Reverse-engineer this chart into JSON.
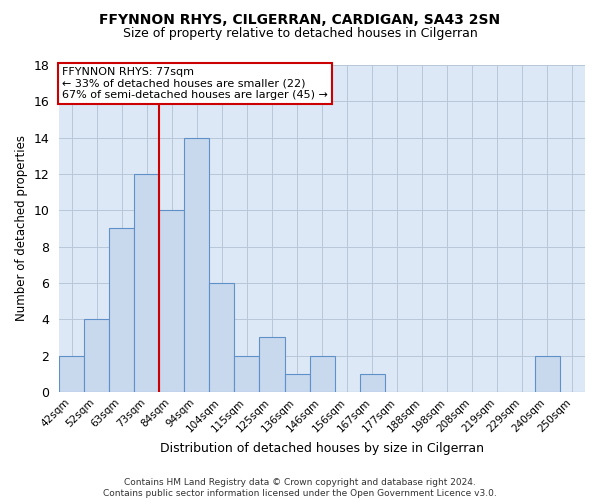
{
  "title": "FFYNNON RHYS, CILGERRAN, CARDIGAN, SA43 2SN",
  "subtitle": "Size of property relative to detached houses in Cilgerran",
  "xlabel": "Distribution of detached houses by size in Cilgerran",
  "ylabel": "Number of detached properties",
  "bar_labels": [
    "42sqm",
    "52sqm",
    "63sqm",
    "73sqm",
    "84sqm",
    "94sqm",
    "104sqm",
    "115sqm",
    "125sqm",
    "136sqm",
    "146sqm",
    "156sqm",
    "167sqm",
    "177sqm",
    "188sqm",
    "198sqm",
    "208sqm",
    "219sqm",
    "229sqm",
    "240sqm",
    "250sqm"
  ],
  "bar_values": [
    2,
    4,
    9,
    12,
    10,
    14,
    6,
    2,
    3,
    1,
    2,
    0,
    1,
    0,
    0,
    0,
    0,
    0,
    0,
    2,
    0
  ],
  "bar_color": "#c8d9ee",
  "bar_edge_color": "#6090c8",
  "ylim": [
    0,
    18
  ],
  "yticks": [
    0,
    2,
    4,
    6,
    8,
    10,
    12,
    14,
    16,
    18
  ],
  "vline_x_idx": 3.5,
  "vline_color": "#cc0000",
  "annotation_title": "FFYNNON RHYS: 77sqm",
  "annotation_line1": "← 33% of detached houses are smaller (22)",
  "annotation_line2": "67% of semi-detached houses are larger (45) →",
  "annotation_box_color": "#ffffff",
  "annotation_box_edge": "#cc0000",
  "footer": "Contains HM Land Registry data © Crown copyright and database right 2024.\nContains public sector information licensed under the Open Government Licence v3.0.",
  "background_color": "#ffffff",
  "axes_bg_color": "#dce8f5",
  "grid_color": "#b8c8d8"
}
